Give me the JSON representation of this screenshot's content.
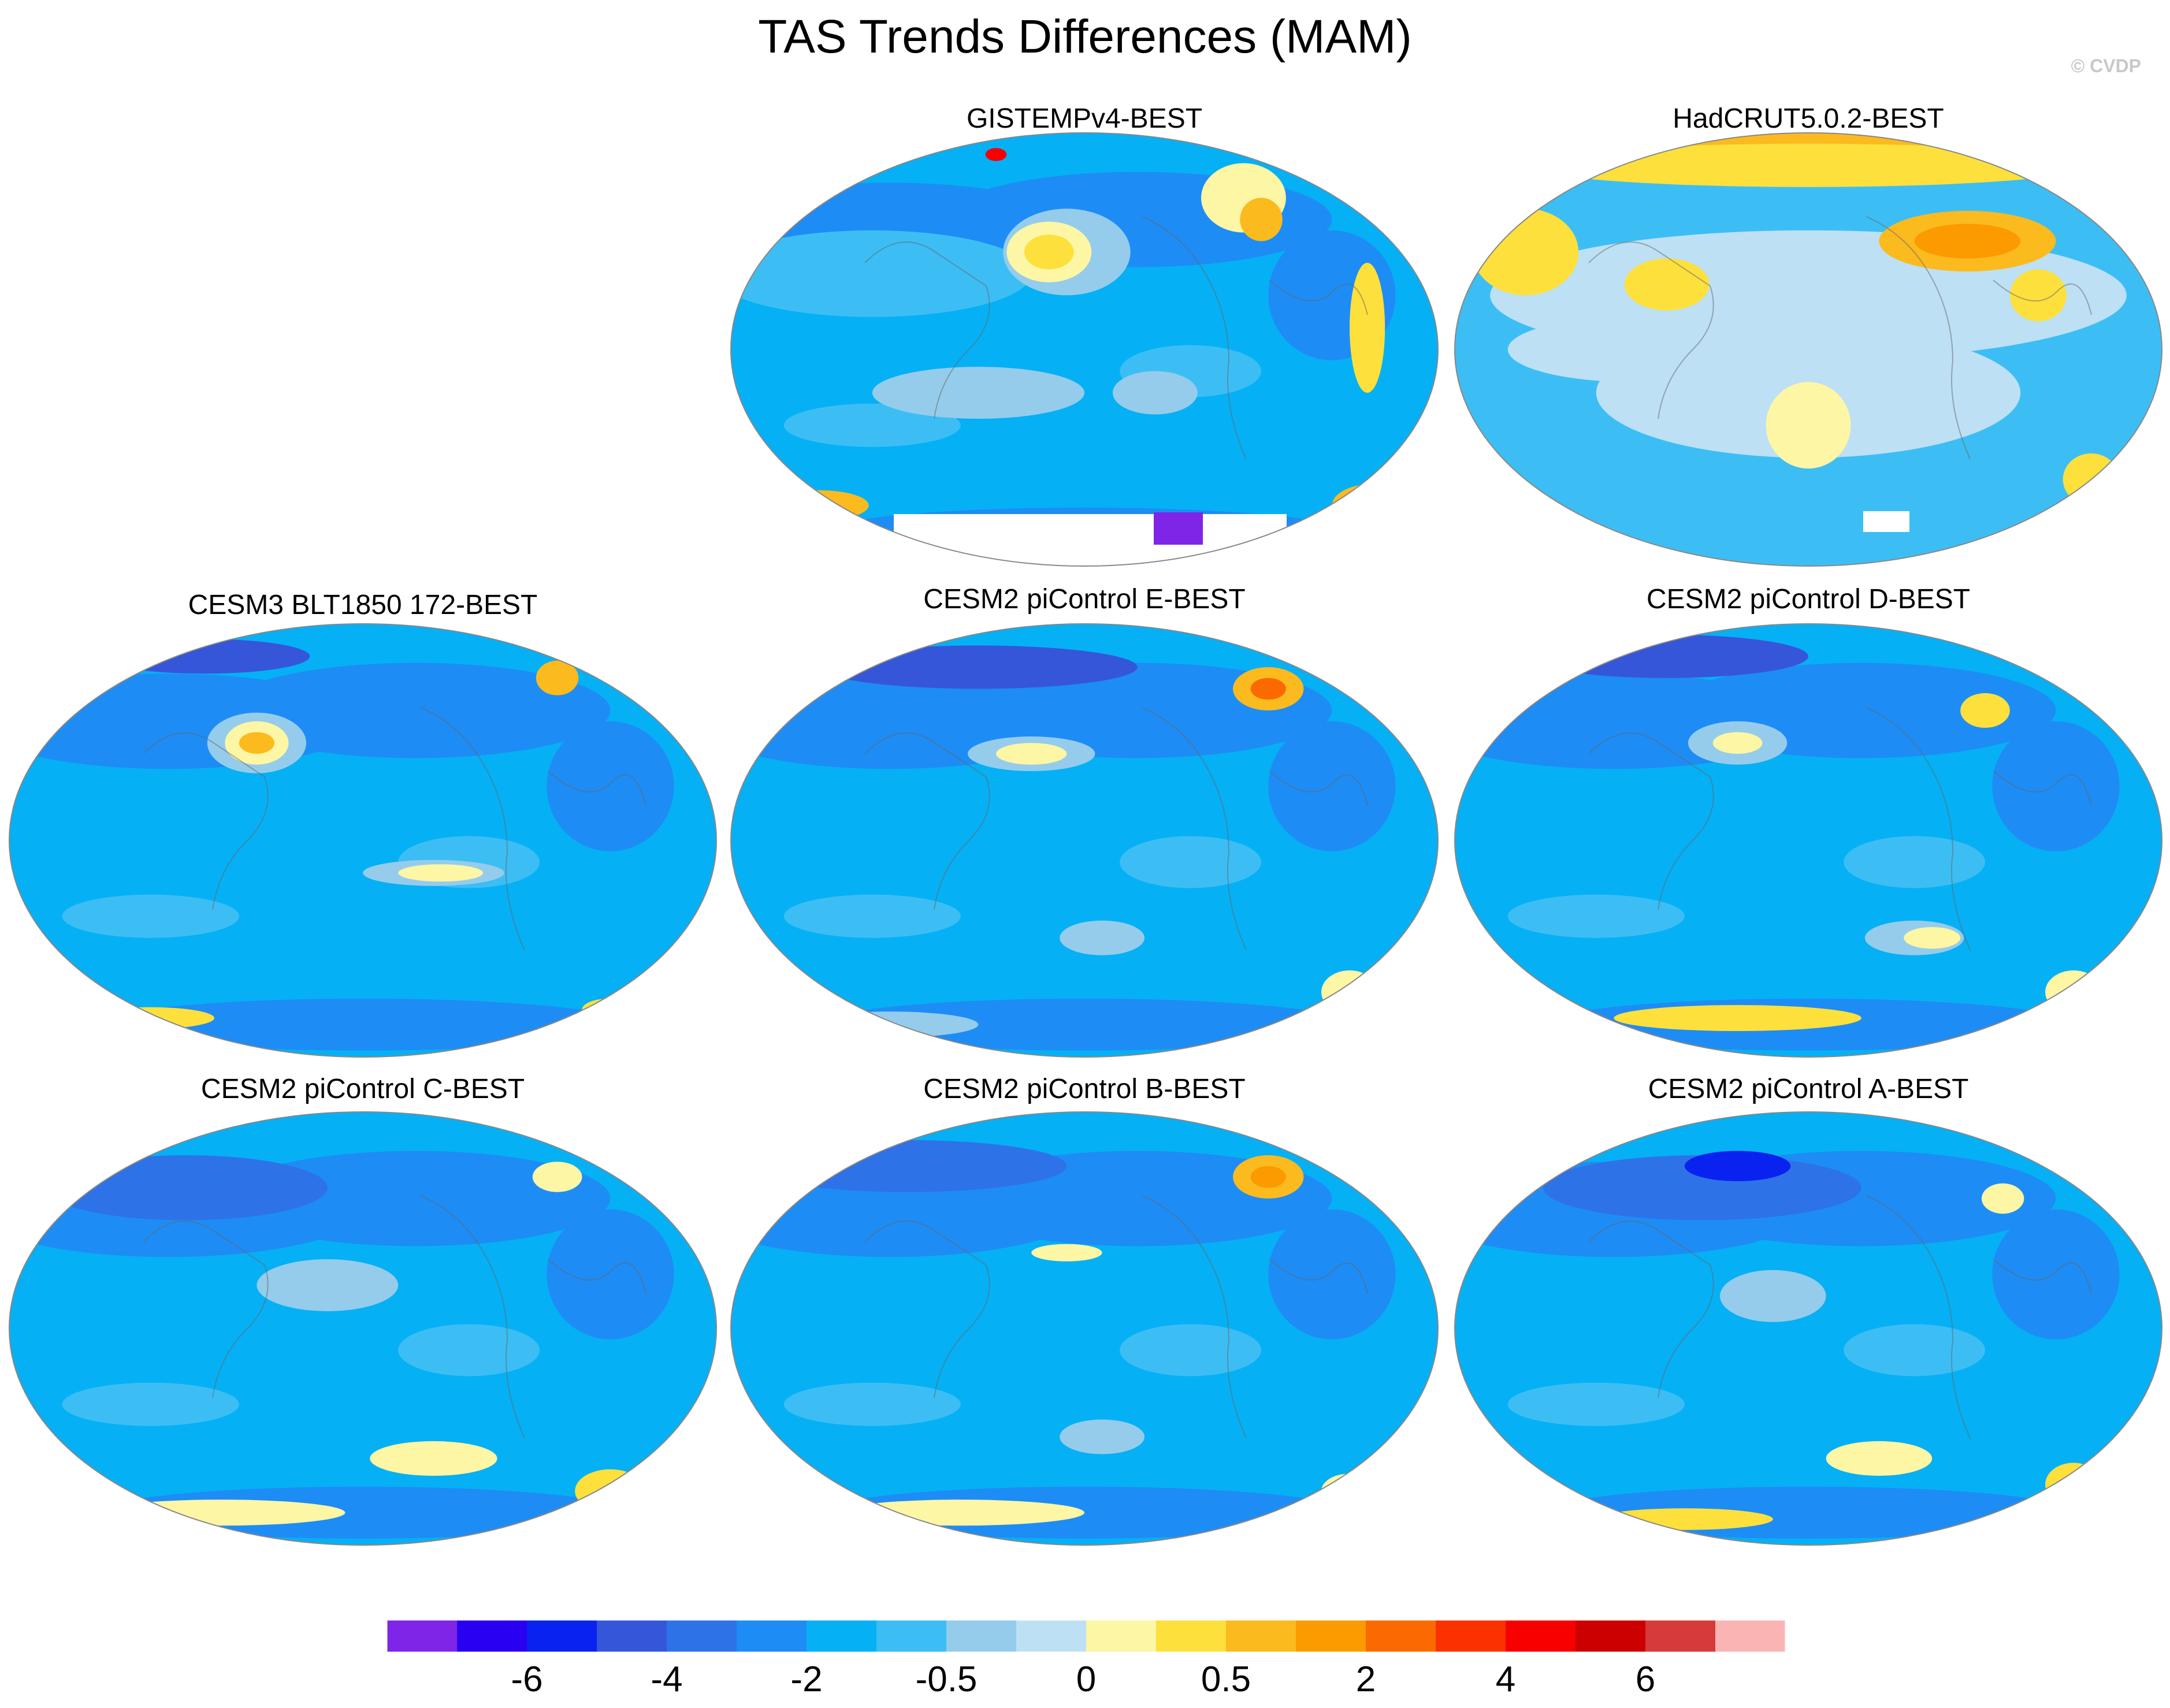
{
  "title": "TAS Trends Differences (MAM)",
  "credit": "© CVDP",
  "chart_data": {
    "type": "map",
    "variable": "TAS trends differences",
    "season": "MAM",
    "panels": [
      {
        "title": "GISTEMPv4-BEST",
        "dominant": "-2 to -0.5",
        "warm_regions": [
          "North Pacific",
          "Northeast Asia / Siberia",
          "Southern Ocean (Atlantic sector)"
        ],
        "missing": "Antarctica"
      },
      {
        "title": "HadCRUT5.0.2-BEST",
        "dominant": "-0.5 to 0",
        "warm_regions": [
          "Arctic",
          "Northern Eurasia",
          "North Pacific",
          "North America",
          "South Pacific"
        ],
        "missing": "parts of Antarctica"
      },
      {
        "title": "CESM3 BLT1850 172-BEST",
        "dominant": "-2 to -0.5",
        "warm_regions": [
          "North Pacific",
          "Alaska",
          "Tropical Pacific",
          "Southern Ocean"
        ]
      },
      {
        "title": "CESM2 piControl E-BEST",
        "dominant": "-2 to -0.5",
        "warm_regions": [
          "North Pacific",
          "Alaska",
          "Southern Ocean"
        ]
      },
      {
        "title": "CESM2 piControl D-BEST",
        "dominant": "-2 to -0.5",
        "warm_regions": [
          "North Pacific",
          "Alaska",
          "Southern Ocean"
        ]
      },
      {
        "title": "CESM2 piControl C-BEST",
        "dominant": "-2 to -0.5",
        "warm_regions": [
          "Alaska",
          "South Pacific",
          "Southern Ocean"
        ]
      },
      {
        "title": "CESM2 piControl B-BEST",
        "dominant": "-2 to -0.5",
        "warm_regions": [
          "Alaska",
          "South Pacific",
          "Southern Ocean"
        ]
      },
      {
        "title": "CESM2 piControl A-BEST",
        "dominant": "-2 to -0.5",
        "warm_regions": [
          "Alaska",
          "South Pacific",
          "Southern Ocean"
        ]
      }
    ],
    "colorbar": {
      "tick_labels": [
        "-6",
        "-4",
        "-2",
        "-0.5",
        "0",
        "0.5",
        "2",
        "4",
        "6"
      ],
      "colors": [
        "#7e25e8",
        "#2a00f2",
        "#0a22f0",
        "#3556d9",
        "#2e72e8",
        "#1e8cf5",
        "#06b0f5",
        "#3cbef5",
        "#95cceb",
        "#bde0f5",
        "#fdf6a4",
        "#fde03c",
        "#fbba1e",
        "#fb9b00",
        "#fb6a00",
        "#fb3200",
        "#f80000",
        "#cc0000",
        "#d63a3a",
        "#fbb4b4"
      ]
    }
  }
}
